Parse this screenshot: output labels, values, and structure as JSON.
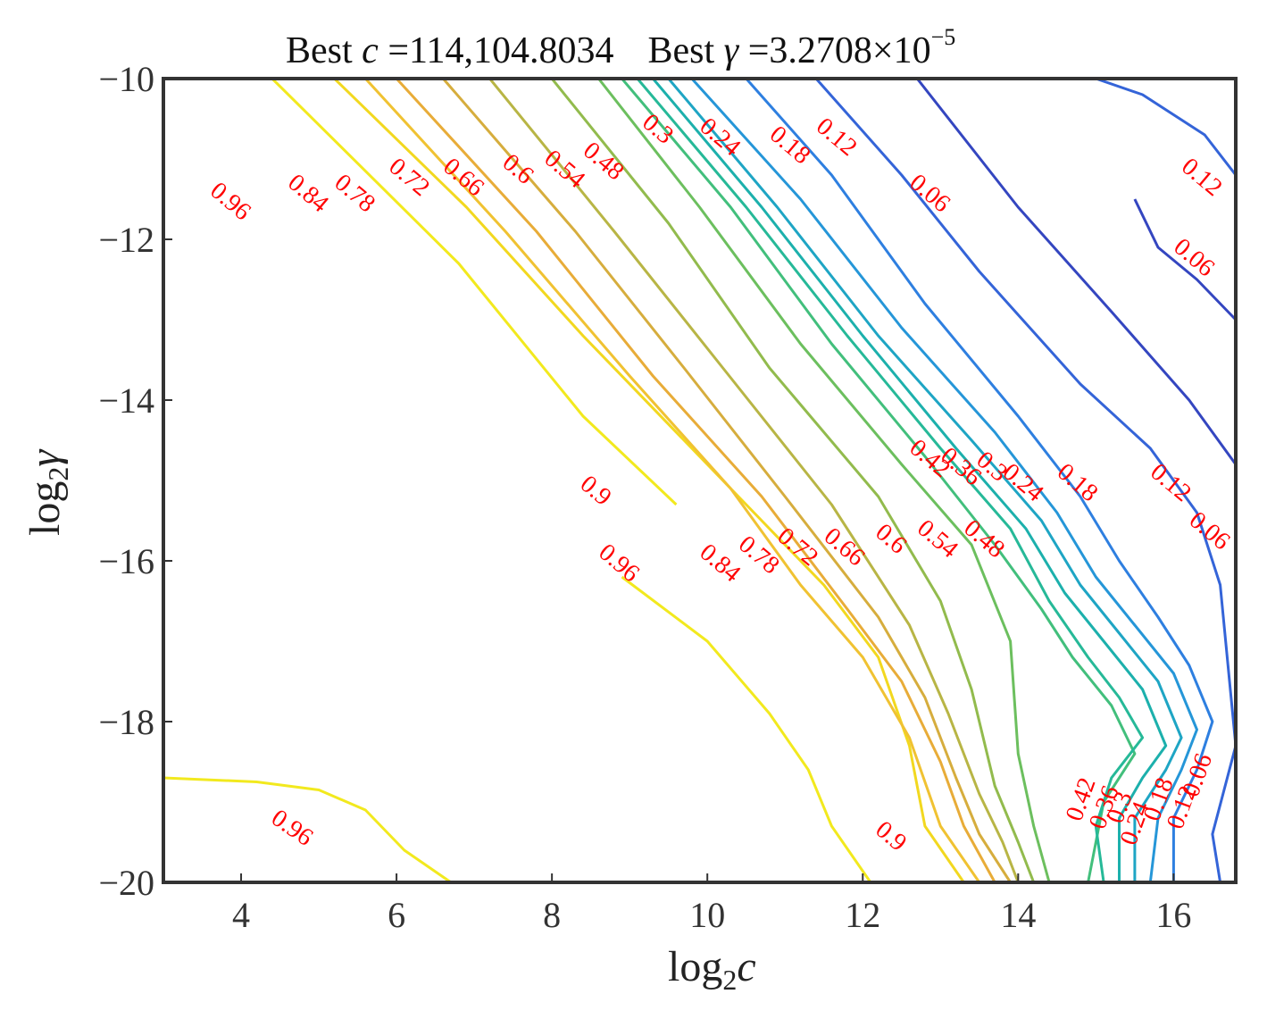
{
  "chart_data": {
    "type": "contour",
    "title_prefix_1": "Best ",
    "title_c_symbol": "c",
    "title_c_value": " =114,104.8034",
    "title_prefix_2": "Best ",
    "title_gamma_symbol": "γ",
    "title_gamma_mantissa": " =3.2708×10",
    "title_gamma_exponent": "−5",
    "best_c": 114104.8034,
    "best_gamma": 3.2708e-05,
    "xlabel_main": "log",
    "xlabel_sub": "2",
    "xlabel_var": "c",
    "ylabel_main": "log",
    "ylabel_sub": "2",
    "ylabel_var": "γ",
    "xlim": [
      3,
      16.8
    ],
    "ylim": [
      -20,
      -10
    ],
    "xticks": [
      4,
      6,
      8,
      10,
      12,
      14,
      16
    ],
    "xtick_labels": [
      "4",
      "6",
      "8",
      "10",
      "12",
      "14",
      "16"
    ],
    "yticks": [
      -10,
      -12,
      -14,
      -16,
      -18,
      -20
    ],
    "ytick_labels": [
      "−10",
      "−12",
      "−14",
      "−16",
      "−18",
      "−20"
    ],
    "colors": {
      "0.96": "#f2e91e",
      "0.9": "#f2d81f",
      "0.84": "#f0c232",
      "0.78": "#e8ac38",
      "0.72": "#d6ad3d",
      "0.66": "#b8b545",
      "0.6": "#92bb4d",
      "0.54": "#6cbf5e",
      "0.48": "#42bf7c",
      "0.42": "#26b998",
      "0.36": "#1cb0ac",
      "0.3": "#1ea5c4",
      "0.24": "#2596d8",
      "0.18": "#2e7fe0",
      "0.12": "#3464d8",
      "0.06": "#3446c0",
      "label": "#ff0000",
      "frame": "#333333"
    },
    "contours": [
      {
        "level": "0.96",
        "points": [
          [
            4.4,
            -10
          ],
          [
            6.8,
            -12.3
          ],
          [
            8.4,
            -14.2
          ],
          [
            9.6,
            -15.3
          ]
        ]
      },
      {
        "level": "0.96",
        "points": [
          [
            8.9,
            -16.2
          ],
          [
            10,
            -17
          ],
          [
            10.8,
            -17.9
          ],
          [
            11.3,
            -18.6
          ],
          [
            11.6,
            -19.3
          ],
          [
            12.1,
            -20
          ]
        ]
      },
      {
        "level": "0.96",
        "points": [
          [
            3,
            -18.7
          ],
          [
            4.2,
            -18.75
          ],
          [
            5,
            -18.85
          ],
          [
            5.6,
            -19.1
          ],
          [
            6.1,
            -19.6
          ],
          [
            6.7,
            -20
          ]
        ]
      },
      {
        "level": "0.9",
        "points": [
          [
            5.2,
            -10
          ],
          [
            6.9,
            -11.6
          ],
          [
            8.4,
            -13.2
          ],
          [
            9.8,
            -14.6
          ],
          [
            10.7,
            -15.5
          ],
          [
            11.5,
            -16.3
          ],
          [
            12.2,
            -17.2
          ],
          [
            12.6,
            -18.3
          ],
          [
            12.8,
            -19.3
          ],
          [
            13.3,
            -20
          ]
        ]
      },
      {
        "level": "0.84",
        "points": [
          [
            5.6,
            -10
          ],
          [
            7.4,
            -11.9
          ],
          [
            9,
            -13.7
          ],
          [
            10.3,
            -15.1
          ],
          [
            11.2,
            -16.3
          ],
          [
            12,
            -17.2
          ],
          [
            12.6,
            -18.2
          ],
          [
            13,
            -19.3
          ],
          [
            13.5,
            -20
          ]
        ]
      },
      {
        "level": "0.78",
        "points": [
          [
            6,
            -10
          ],
          [
            7.8,
            -11.9
          ],
          [
            9.3,
            -13.7
          ],
          [
            10.7,
            -15.2
          ],
          [
            11.8,
            -16.6
          ],
          [
            12.5,
            -17.5
          ],
          [
            13,
            -18.5
          ],
          [
            13.3,
            -19.3
          ],
          [
            13.7,
            -20
          ]
        ]
      },
      {
        "level": "0.72",
        "points": [
          [
            6.6,
            -10
          ],
          [
            8.3,
            -11.9
          ],
          [
            9.7,
            -13.6
          ],
          [
            11,
            -15.2
          ],
          [
            12.2,
            -16.7
          ],
          [
            12.8,
            -17.7
          ],
          [
            13.2,
            -18.7
          ],
          [
            13.5,
            -19.4
          ],
          [
            13.9,
            -20
          ]
        ]
      },
      {
        "level": "0.66",
        "points": [
          [
            7.2,
            -10
          ],
          [
            8.8,
            -11.9
          ],
          [
            10.2,
            -13.6
          ],
          [
            11.6,
            -15.3
          ],
          [
            12.6,
            -16.8
          ],
          [
            13.1,
            -17.9
          ],
          [
            13.5,
            -18.9
          ],
          [
            13.8,
            -19.5
          ],
          [
            14,
            -20
          ]
        ]
      },
      {
        "level": "0.6",
        "points": [
          [
            8,
            -10
          ],
          [
            9.5,
            -11.8
          ],
          [
            10.8,
            -13.6
          ],
          [
            12.2,
            -15.2
          ],
          [
            13,
            -16.5
          ],
          [
            13.4,
            -17.6
          ],
          [
            13.7,
            -18.8
          ],
          [
            14,
            -19.5
          ],
          [
            14.2,
            -20
          ]
        ]
      },
      {
        "level": "0.54",
        "points": [
          [
            8.6,
            -10
          ],
          [
            9.9,
            -11.6
          ],
          [
            11.2,
            -13.3
          ],
          [
            12.5,
            -14.8
          ],
          [
            13.4,
            -15.8
          ],
          [
            13.9,
            -17
          ],
          [
            14,
            -18.4
          ],
          [
            14.2,
            -19.3
          ],
          [
            14.4,
            -20
          ]
        ]
      },
      {
        "level": "0.48",
        "points": [
          [
            8.9,
            -10
          ],
          [
            10.3,
            -11.6
          ],
          [
            11.6,
            -13.3
          ],
          [
            12.8,
            -14.7
          ],
          [
            13.7,
            -15.8
          ],
          [
            14.3,
            -16.6
          ],
          [
            14.7,
            -17.2
          ],
          [
            15.2,
            -17.8
          ],
          [
            15.5,
            -18.4
          ],
          [
            15.1,
            -19
          ],
          [
            14.9,
            -20
          ]
        ]
      },
      {
        "level": "0.42",
        "points": [
          [
            9.1,
            -10
          ],
          [
            10.5,
            -11.6
          ],
          [
            11.8,
            -13.2
          ],
          [
            13,
            -14.6
          ],
          [
            13.9,
            -15.6
          ],
          [
            14.4,
            -16.5
          ],
          [
            14.9,
            -17.2
          ],
          [
            15.3,
            -17.7
          ],
          [
            15.6,
            -18.2
          ],
          [
            15.2,
            -18.7
          ],
          [
            15,
            -19.3
          ],
          [
            15.1,
            -20
          ]
        ]
      },
      {
        "level": "0.36",
        "points": [
          [
            9.3,
            -10
          ],
          [
            10.7,
            -11.6
          ],
          [
            12,
            -13.2
          ],
          [
            13.2,
            -14.6
          ],
          [
            14.1,
            -15.6
          ],
          [
            14.6,
            -16.4
          ],
          [
            15.1,
            -17
          ],
          [
            15.6,
            -17.6
          ],
          [
            15.9,
            -18.3
          ],
          [
            15.6,
            -18.7
          ],
          [
            15.3,
            -19.2
          ],
          [
            15.3,
            -20
          ]
        ]
      },
      {
        "level": "0.3",
        "points": [
          [
            9.5,
            -10
          ],
          [
            10.9,
            -11.6
          ],
          [
            12.2,
            -13.2
          ],
          [
            13.4,
            -14.5
          ],
          [
            14.3,
            -15.5
          ],
          [
            14.8,
            -16.3
          ],
          [
            15.3,
            -16.9
          ],
          [
            15.8,
            -17.5
          ],
          [
            16.1,
            -18.2
          ],
          [
            15.9,
            -18.6
          ],
          [
            15.5,
            -19.2
          ],
          [
            15.5,
            -20
          ]
        ]
      },
      {
        "level": "0.24",
        "points": [
          [
            9.8,
            -10
          ],
          [
            11.2,
            -11.5
          ],
          [
            12.5,
            -13.1
          ],
          [
            13.7,
            -14.4
          ],
          [
            14.5,
            -15.4
          ],
          [
            15,
            -16.2
          ],
          [
            15.5,
            -16.8
          ],
          [
            16,
            -17.4
          ],
          [
            16.3,
            -18.1
          ],
          [
            16.1,
            -18.6
          ],
          [
            15.8,
            -19.2
          ],
          [
            15.7,
            -20
          ]
        ]
      },
      {
        "level": "0.18",
        "points": [
          [
            10.5,
            -10
          ],
          [
            11.6,
            -11.2
          ],
          [
            12.8,
            -12.8
          ],
          [
            14,
            -14.2
          ],
          [
            14.8,
            -15.2
          ],
          [
            15.3,
            -16
          ],
          [
            15.8,
            -16.7
          ],
          [
            16.2,
            -17.3
          ],
          [
            16.5,
            -18
          ],
          [
            16.3,
            -18.6
          ],
          [
            16,
            -19.2
          ],
          [
            16,
            -20
          ]
        ]
      },
      {
        "level": "0.12",
        "points": [
          [
            11.4,
            -10
          ],
          [
            12.5,
            -11.2
          ],
          [
            13.5,
            -12.4
          ],
          [
            14.8,
            -13.8
          ],
          [
            15.7,
            -14.6
          ],
          [
            16.3,
            -15.4
          ],
          [
            16.6,
            -16.3
          ],
          [
            16.7,
            -17.3
          ],
          [
            16.8,
            -18.3
          ],
          [
            16.5,
            -19.4
          ],
          [
            16.6,
            -20
          ]
        ]
      },
      {
        "level": "0.06",
        "points": [
          [
            12.7,
            -10
          ],
          [
            14,
            -11.6
          ],
          [
            15.2,
            -12.9
          ],
          [
            16.2,
            -14
          ],
          [
            16.8,
            -14.8
          ]
        ]
      },
      {
        "level": "0.12",
        "points": [
          [
            15,
            -10
          ],
          [
            15.6,
            -10.2
          ],
          [
            16.4,
            -10.7
          ],
          [
            16.8,
            -11.2
          ]
        ]
      },
      {
        "level": "0.06",
        "points": [
          [
            15.5,
            -11.5
          ],
          [
            15.8,
            -12.1
          ],
          [
            16.3,
            -12.5
          ],
          [
            16.8,
            -13
          ]
        ]
      }
    ],
    "labels": [
      {
        "text": "0.96",
        "x": 3.8,
        "y": -11.6,
        "angle": 40
      },
      {
        "text": "0.84",
        "x": 4.8,
        "y": -11.5,
        "angle": 40
      },
      {
        "text": "0.78",
        "x": 5.4,
        "y": -11.5,
        "angle": 40
      },
      {
        "text": "0.72",
        "x": 6.1,
        "y": -11.3,
        "angle": 40
      },
      {
        "text": "0.66",
        "x": 6.8,
        "y": -11.3,
        "angle": 40
      },
      {
        "text": "0.6",
        "x": 7.5,
        "y": -11.2,
        "angle": 40
      },
      {
        "text": "0.54",
        "x": 8.1,
        "y": -11.2,
        "angle": 40
      },
      {
        "text": "0.48",
        "x": 8.6,
        "y": -11.1,
        "angle": 40
      },
      {
        "text": "0.3",
        "x": 9.3,
        "y": -10.7,
        "angle": 40
      },
      {
        "text": "0.24",
        "x": 10.1,
        "y": -10.8,
        "angle": 40
      },
      {
        "text": "0.18",
        "x": 11,
        "y": -10.9,
        "angle": 40
      },
      {
        "text": "0.12",
        "x": 11.6,
        "y": -10.8,
        "angle": 40
      },
      {
        "text": "0.06",
        "x": 12.8,
        "y": -11.5,
        "angle": 40
      },
      {
        "text": "0.12",
        "x": 16.3,
        "y": -11.3,
        "angle": 40
      },
      {
        "text": "0.06",
        "x": 16.2,
        "y": -12.3,
        "angle": 40
      },
      {
        "text": "0.9",
        "x": 8.5,
        "y": -15.2,
        "angle": 40
      },
      {
        "text": "0.96",
        "x": 8.8,
        "y": -16.1,
        "angle": 40
      },
      {
        "text": "0.84",
        "x": 10.1,
        "y": -16.1,
        "angle": 40
      },
      {
        "text": "0.78",
        "x": 10.6,
        "y": -16,
        "angle": 40
      },
      {
        "text": "0.72",
        "x": 11.1,
        "y": -15.9,
        "angle": 40
      },
      {
        "text": "0.66",
        "x": 11.7,
        "y": -15.9,
        "angle": 40
      },
      {
        "text": "0.6",
        "x": 12.3,
        "y": -15.8,
        "angle": 40
      },
      {
        "text": "0.54",
        "x": 12.9,
        "y": -15.8,
        "angle": 40
      },
      {
        "text": "0.48",
        "x": 13.5,
        "y": -15.8,
        "angle": 40
      },
      {
        "text": "0.42",
        "x": 12.8,
        "y": -14.8,
        "angle": 40
      },
      {
        "text": "0.36",
        "x": 13.2,
        "y": -14.9,
        "angle": 40
      },
      {
        "text": "0.3",
        "x": 13.6,
        "y": -14.9,
        "angle": 40
      },
      {
        "text": "0.24",
        "x": 14,
        "y": -15.1,
        "angle": 40
      },
      {
        "text": "0.18",
        "x": 14.7,
        "y": -15.1,
        "angle": 40
      },
      {
        "text": "0.12",
        "x": 15.9,
        "y": -15.1,
        "angle": 40
      },
      {
        "text": "0.06",
        "x": 16.4,
        "y": -15.7,
        "angle": 40
      },
      {
        "text": "0.96",
        "x": 4.6,
        "y": -19.4,
        "angle": 35
      },
      {
        "text": "0.9",
        "x": 12.3,
        "y": -19.5,
        "angle": 40
      },
      {
        "text": "0.42",
        "x": 14.9,
        "y": -19,
        "angle": -70
      },
      {
        "text": "0.36",
        "x": 15.2,
        "y": -19.1,
        "angle": -70
      },
      {
        "text": "0.3",
        "x": 15.4,
        "y": -19.1,
        "angle": -70
      },
      {
        "text": "0.24",
        "x": 15.6,
        "y": -19.3,
        "angle": -70
      },
      {
        "text": "0.18",
        "x": 15.9,
        "y": -19,
        "angle": -70
      },
      {
        "text": "0.12",
        "x": 16.2,
        "y": -19.1,
        "angle": -70
      },
      {
        "text": "0.06",
        "x": 16.4,
        "y": -18.7,
        "angle": -70
      }
    ]
  }
}
